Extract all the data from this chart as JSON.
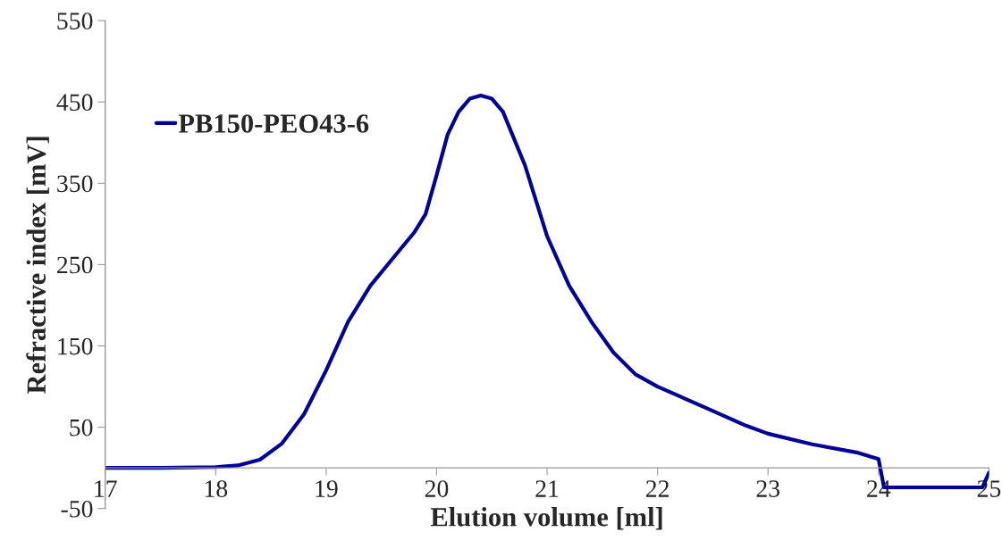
{
  "chart_data": {
    "type": "line",
    "xlabel": "Elution volume [ml]",
    "ylabel": "Refractive index [mV]",
    "x": [
      17.0,
      17.5,
      18.0,
      18.2,
      18.4,
      18.6,
      18.8,
      19.0,
      19.2,
      19.4,
      19.6,
      19.8,
      19.9,
      20.0,
      20.1,
      20.2,
      20.3,
      20.4,
      20.5,
      20.6,
      20.8,
      21.0,
      21.2,
      21.4,
      21.6,
      21.8,
      22.0,
      22.4,
      22.8,
      23.0,
      23.4,
      23.8,
      24.0,
      24.05,
      24.94,
      25.0
    ],
    "series": [
      {
        "name": "PB150-PEO43-6",
        "color": "#000099",
        "values": [
          0,
          0,
          1,
          3,
          10,
          30,
          66,
          120,
          180,
          224,
          257,
          290,
          312,
          360,
          410,
          438,
          454,
          458,
          454,
          438,
          372,
          285,
          224,
          180,
          142,
          115,
          100,
          76,
          52,
          42,
          29,
          19,
          11,
          -24,
          -24,
          -6
        ]
      }
    ],
    "xlim": [
      17,
      25
    ],
    "ylim": [
      -50,
      550
    ],
    "xticks": [
      17,
      18,
      19,
      20,
      21,
      22,
      23,
      24,
      25
    ],
    "yticks": [
      -50,
      50,
      150,
      250,
      350,
      450,
      550
    ],
    "grid": false,
    "legend": "top left",
    "marker": "none",
    "line_style": "solid"
  }
}
